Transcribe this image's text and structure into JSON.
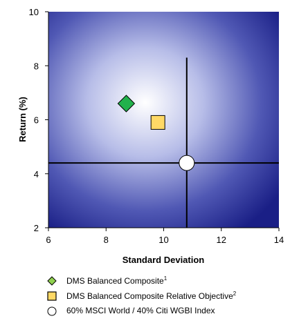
{
  "chart_data": {
    "type": "scatter",
    "xlabel": "Standard Deviation",
    "ylabel": "Return (%)",
    "xlim": [
      6,
      14
    ],
    "ylim": [
      2,
      10
    ],
    "xticks": [
      "6",
      "8",
      "10",
      "12",
      "14"
    ],
    "yticks": [
      "2",
      "4",
      "6",
      "8",
      "10"
    ],
    "grid": false,
    "background": "radial gradient, white center to dark blue",
    "points": [
      {
        "name": "DMS Balanced Composite",
        "x": 8.7,
        "y": 6.6,
        "marker": "diamond",
        "color": "#22b14c"
      },
      {
        "name": "DMS Balanced Composite Relative Objective",
        "x": 9.8,
        "y": 5.9,
        "marker": "square",
        "color": "#ffd966"
      },
      {
        "name": "60% MSCI World / 40% Citi WGBI Index",
        "x": 10.8,
        "y": 4.4,
        "marker": "circle",
        "color": "#ffffff"
      }
    ],
    "reference_lines": [
      {
        "orientation": "vertical",
        "x": 10.8,
        "y_from": 2,
        "y_to": 8.3
      },
      {
        "orientation": "horizontal",
        "y": 4.4,
        "x_from": 6,
        "x_to": 14
      }
    ]
  },
  "legend": [
    {
      "label": "DMS Balanced Composite",
      "sup": "1",
      "marker": "diamond",
      "color": "#8fd14f"
    },
    {
      "label": "DMS Balanced Composite Relative Objective",
      "sup": "2",
      "marker": "square",
      "color": "#ffd966"
    },
    {
      "label": "60% MSCI World / 40% Citi WGBI Index",
      "sup": "",
      "marker": "circle",
      "color": "#ffffff"
    }
  ],
  "colors": {
    "gradient_center": "#ffffff",
    "gradient_mid": "#8e98d6",
    "gradient_edge": "#1a1f86"
  }
}
